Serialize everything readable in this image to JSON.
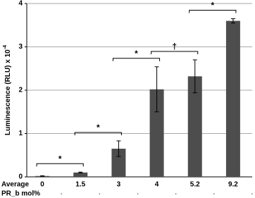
{
  "chart_data": {
    "type": "bar",
    "y_label": "Luminescence (RLU) x 10",
    "y_label_exponent": "-4",
    "x_label": [
      "Average",
      "PR_b mol%"
    ],
    "categories": [
      "0",
      "1.5",
      "3",
      "4",
      "5.2",
      "9.2"
    ],
    "values": [
      0.02,
      0.1,
      0.65,
      2.02,
      2.32,
      3.6
    ],
    "errors": [
      0.005,
      0.01,
      0.18,
      0.52,
      0.38,
      0.05
    ],
    "color": "#4d4d4d",
    "ylim": [
      0,
      4
    ],
    "yticks": [
      0,
      1,
      2,
      3,
      4
    ],
    "grid": true,
    "annotations": [
      "*",
      "*",
      "*",
      "†",
      "*"
    ]
  }
}
